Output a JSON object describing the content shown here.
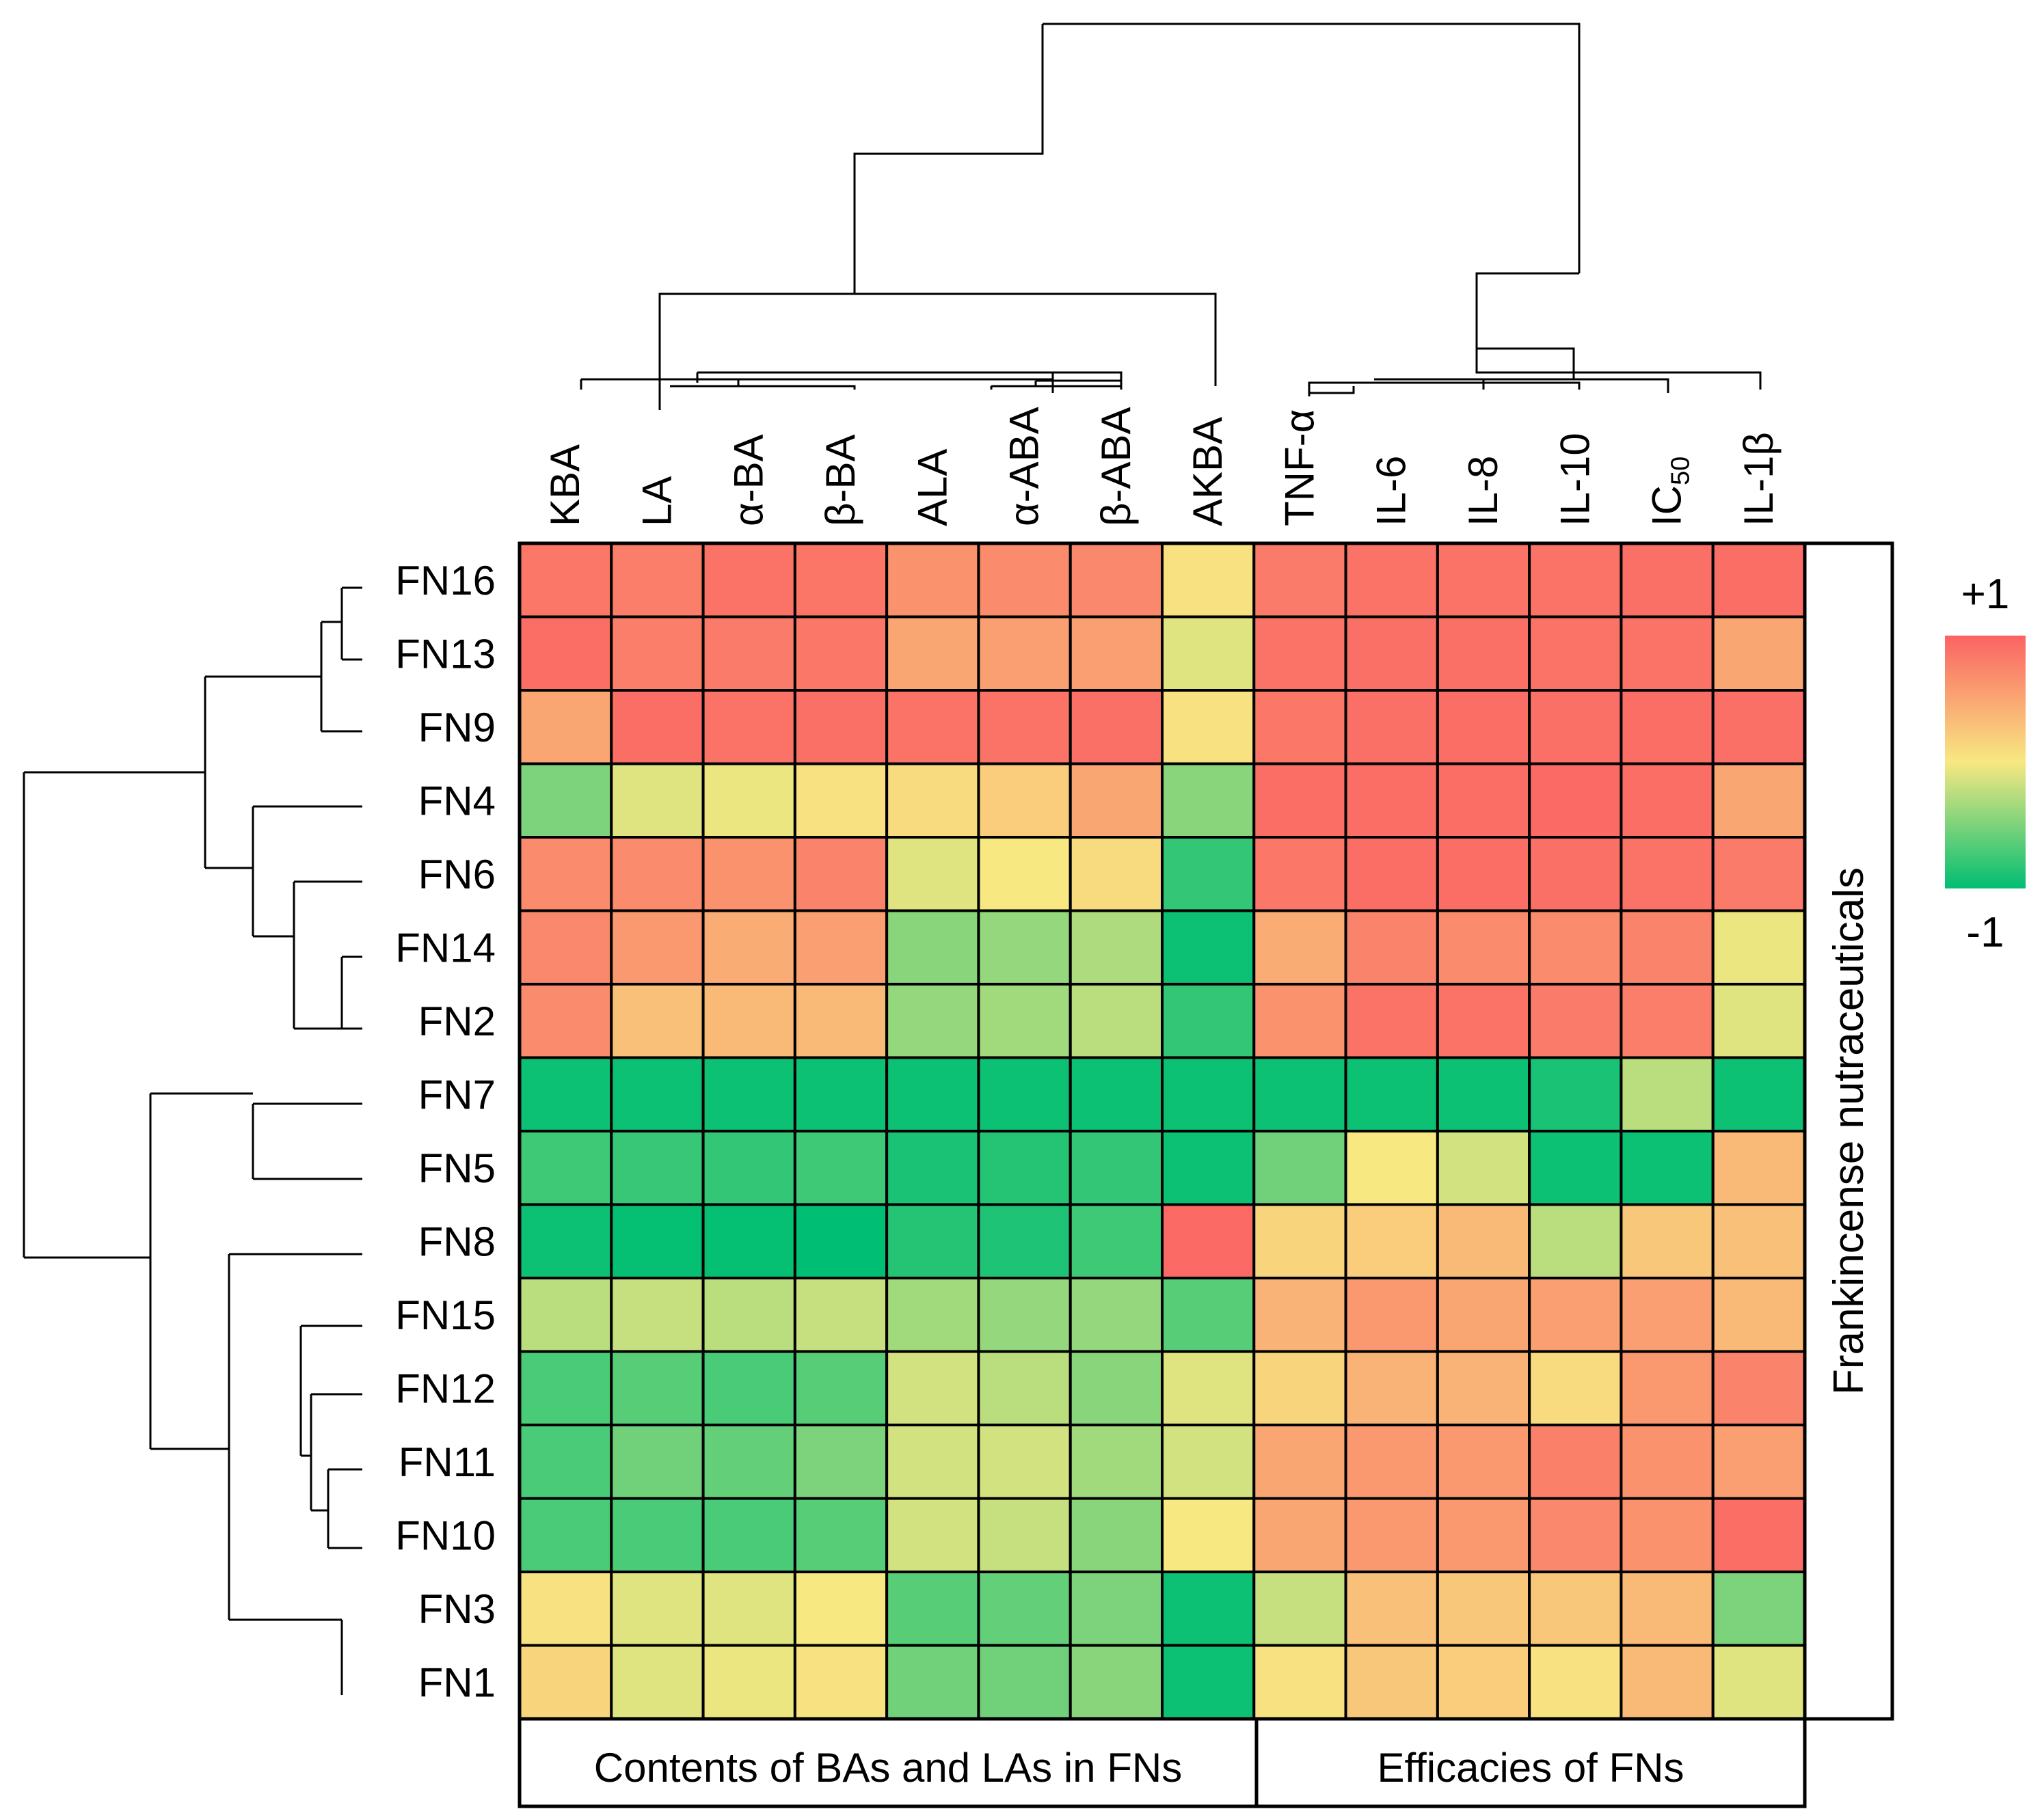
{
  "chart_data": {
    "type": "heatmap",
    "title": "",
    "columns": [
      "KBA",
      "LA",
      "α-BA",
      "β-BA",
      "ALA",
      "α-ABA",
      "β-ABA",
      "AKBA",
      "TNF-α",
      "IL-6",
      "IL-8",
      "IL-10",
      "IC50",
      "IL-1β"
    ],
    "ic50_label": {
      "base": "IC",
      "sub": "50"
    },
    "rows": [
      "FN16",
      "FN13",
      "FN9",
      "FN4",
      "FN6",
      "FN14",
      "FN2",
      "FN7",
      "FN5",
      "FN8",
      "FN15",
      "FN12",
      "FN11",
      "FN10",
      "FN3",
      "FN1"
    ],
    "values": [
      [
        0.85,
        0.8,
        0.88,
        0.86,
        0.65,
        0.7,
        0.72,
        0.05,
        0.82,
        0.88,
        0.88,
        0.88,
        0.9,
        0.92
      ],
      [
        0.92,
        0.8,
        0.82,
        0.85,
        0.5,
        0.55,
        0.55,
        -0.1,
        0.88,
        0.9,
        0.9,
        0.88,
        0.88,
        0.5
      ],
      [
        0.5,
        0.92,
        0.88,
        0.9,
        0.88,
        0.88,
        0.9,
        0.05,
        0.85,
        0.9,
        0.92,
        0.9,
        0.92,
        0.9
      ],
      [
        -0.5,
        -0.1,
        -0.05,
        0.05,
        0.1,
        0.2,
        0.5,
        -0.45,
        0.92,
        0.92,
        0.92,
        0.95,
        0.92,
        0.5
      ],
      [
        0.7,
        0.7,
        0.65,
        0.75,
        -0.1,
        0.0,
        0.1,
        -0.8,
        0.85,
        0.92,
        0.92,
        0.9,
        0.88,
        0.82
      ],
      [
        0.72,
        0.6,
        0.45,
        0.55,
        -0.45,
        -0.4,
        -0.3,
        -0.95,
        0.45,
        0.75,
        0.7,
        0.7,
        0.75,
        -0.05
      ],
      [
        0.7,
        0.3,
        0.35,
        0.35,
        -0.4,
        -0.35,
        -0.25,
        -0.8,
        0.65,
        0.88,
        0.88,
        0.82,
        0.8,
        -0.1
      ],
      [
        -0.95,
        -0.95,
        -0.95,
        -0.95,
        -0.95,
        -0.95,
        -0.95,
        -0.95,
        -0.95,
        -0.95,
        -0.95,
        -0.9,
        -0.25,
        -0.95
      ],
      [
        -0.75,
        -0.78,
        -0.8,
        -0.75,
        -0.9,
        -0.85,
        -0.8,
        -0.95,
        -0.55,
        0.0,
        -0.15,
        -0.95,
        -0.95,
        0.35
      ],
      [
        -0.95,
        -0.98,
        -0.98,
        -1.0,
        -0.85,
        -0.88,
        -0.75,
        0.95,
        0.15,
        0.2,
        0.35,
        -0.25,
        0.25,
        0.3
      ],
      [
        -0.25,
        -0.2,
        -0.25,
        -0.2,
        -0.35,
        -0.4,
        -0.4,
        -0.65,
        0.4,
        0.6,
        0.5,
        0.55,
        0.55,
        0.35
      ],
      [
        -0.7,
        -0.65,
        -0.7,
        -0.65,
        -0.15,
        -0.25,
        -0.45,
        -0.1,
        0.15,
        0.4,
        0.4,
        0.1,
        0.6,
        0.75
      ],
      [
        -0.7,
        -0.55,
        -0.6,
        -0.5,
        -0.15,
        -0.15,
        -0.35,
        -0.15,
        0.5,
        0.6,
        0.6,
        0.78,
        0.65,
        0.55
      ],
      [
        -0.7,
        -0.7,
        -0.7,
        -0.65,
        -0.15,
        -0.2,
        -0.45,
        0.0,
        0.5,
        0.6,
        0.6,
        0.72,
        0.65,
        0.92
      ],
      [
        0.05,
        -0.1,
        -0.1,
        0.0,
        -0.65,
        -0.6,
        -0.5,
        -0.95,
        -0.2,
        0.3,
        0.25,
        0.25,
        0.35,
        -0.5
      ],
      [
        0.15,
        -0.1,
        -0.05,
        0.05,
        -0.55,
        -0.55,
        -0.45,
        -0.95,
        0.05,
        0.25,
        0.2,
        0.05,
        0.35,
        -0.1
      ]
    ],
    "group_labels": [
      "Contents of BAs and LAs in FNs",
      "Efficacies of FNs"
    ],
    "right_label": "Frankincense nutraceuticals",
    "legend": {
      "max_label": "+1",
      "min_label": "-1",
      "range": [
        -1,
        1
      ],
      "position": "right"
    },
    "colors": {
      "low": "#00be73",
      "mid": "#f8e882",
      "high": "#fb6363"
    }
  }
}
